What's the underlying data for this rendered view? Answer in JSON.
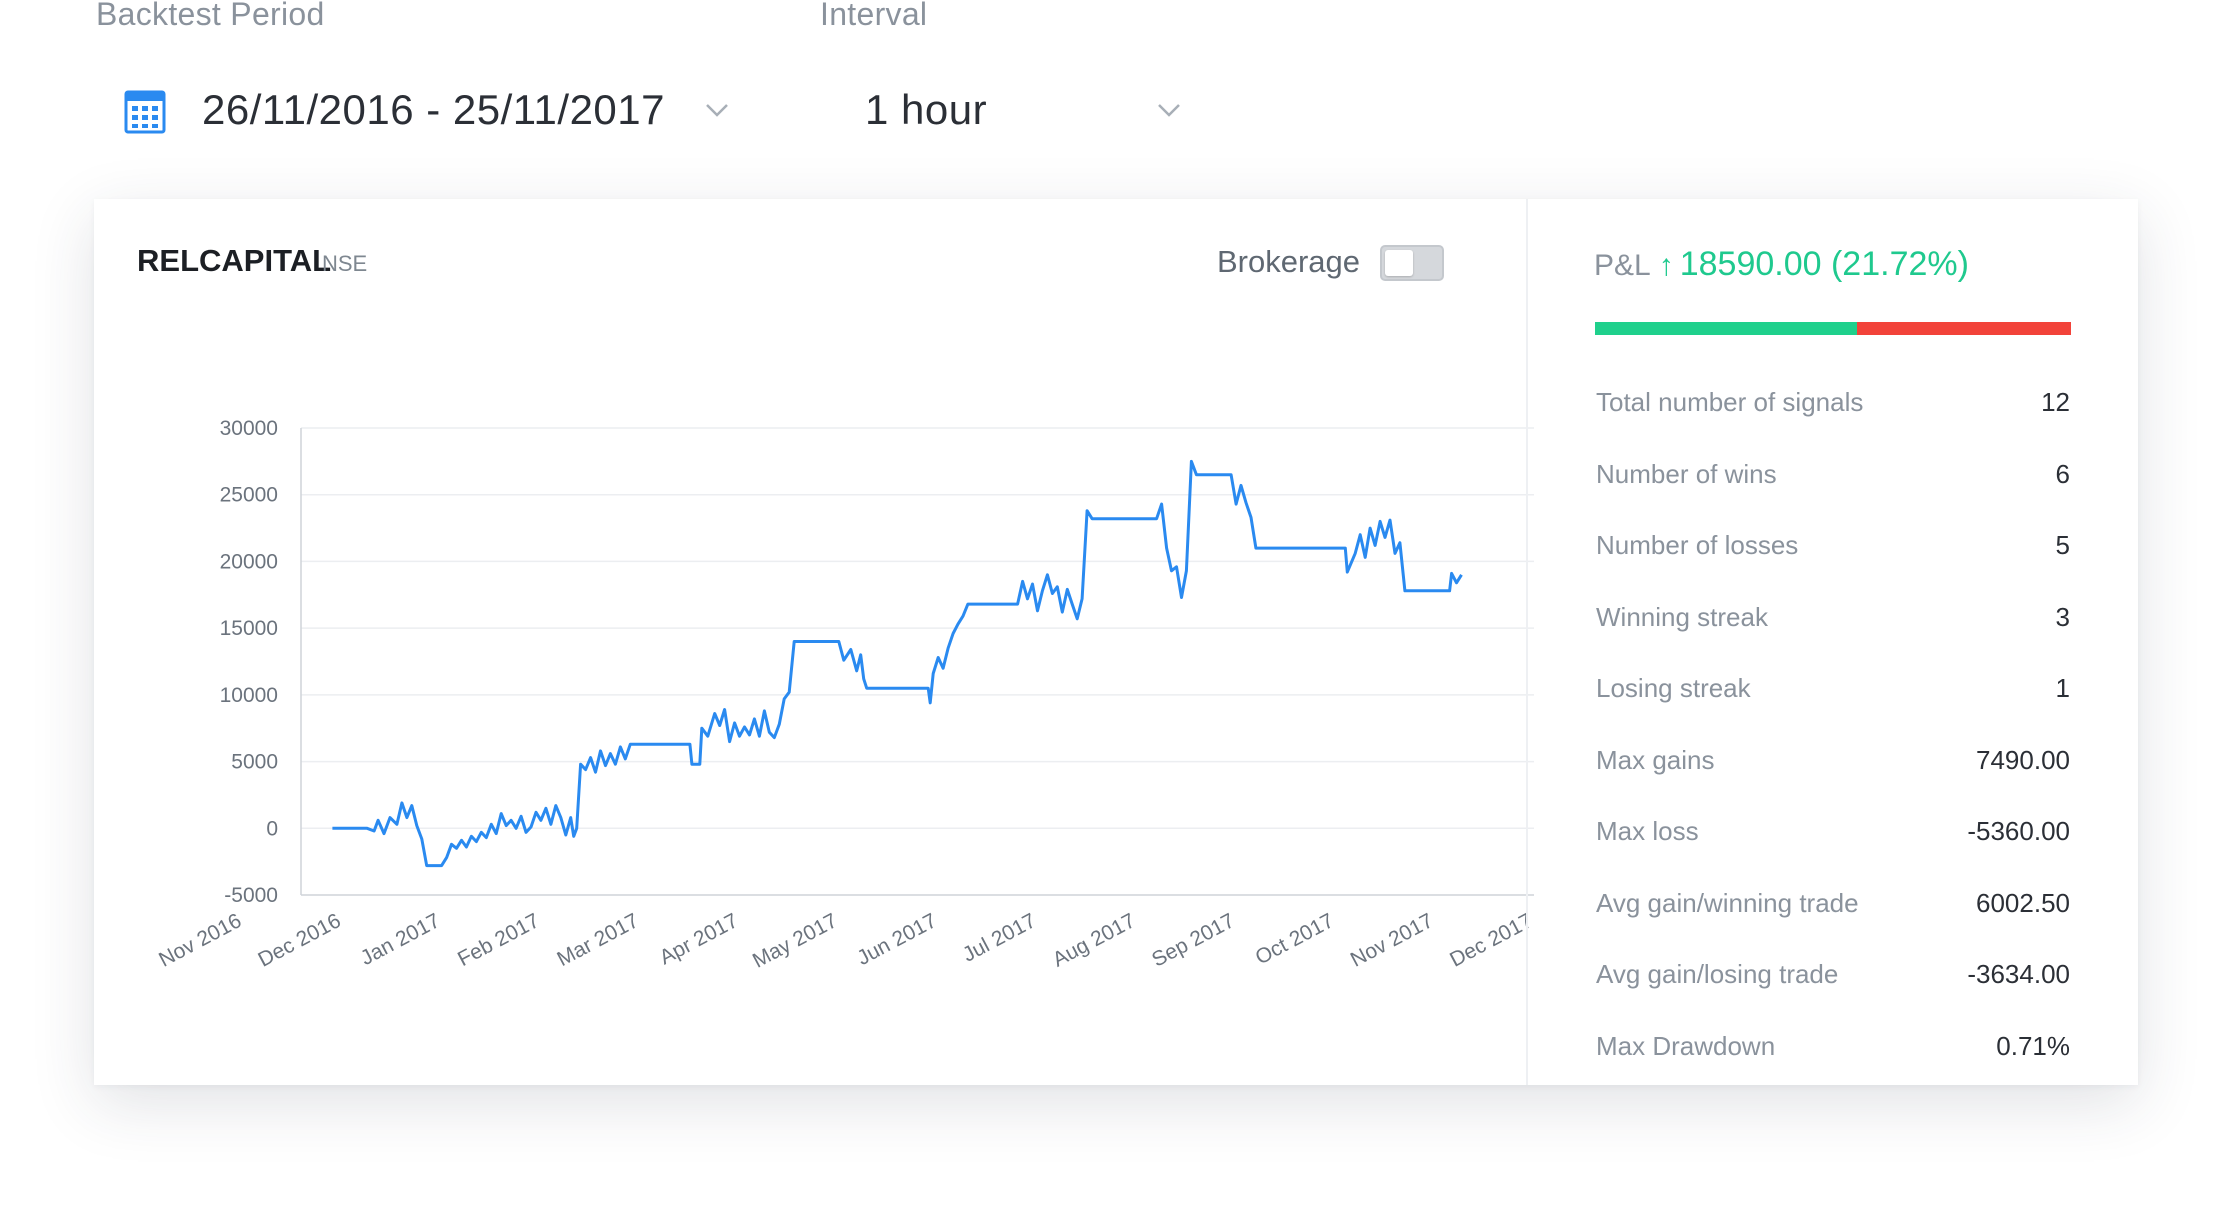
{
  "filters": {
    "period_label": "Backtest Period",
    "period_value": "26/11/2016 - 25/11/2017",
    "interval_label": "Interval",
    "interval_value": "1 hour"
  },
  "icons": {
    "calendar": "calendar-icon",
    "dropdown": "chevron-down-icon",
    "pnl_arrow": "arrow-up-icon"
  },
  "instrument": {
    "symbol": "RELCAPITAL",
    "exchange": "NSE"
  },
  "brokerage": {
    "label": "Brokerage",
    "enabled": false
  },
  "pnl": {
    "label": "P&L",
    "arrow": "↑",
    "value": "18590.00 (21.72%)",
    "win_share": 0.55,
    "colors": {
      "positive": "#1fd08c",
      "negative": "#f2433a"
    }
  },
  "stats": [
    {
      "label": "Total number of signals",
      "value": "12"
    },
    {
      "label": "Number of wins",
      "value": "6"
    },
    {
      "label": "Number of losses",
      "value": "5"
    },
    {
      "label": "Winning streak",
      "value": "3"
    },
    {
      "label": "Losing streak",
      "value": "1"
    },
    {
      "label": "Max gains",
      "value": "7490.00"
    },
    {
      "label": "Max loss",
      "value": "-5360.00"
    },
    {
      "label": "Avg gain/winning trade",
      "value": "6002.50"
    },
    {
      "label": "Avg gain/losing trade",
      "value": "-3634.00"
    },
    {
      "label": "Max Drawdown",
      "value": "0.71%"
    }
  ],
  "chart_data": {
    "type": "line",
    "title": "",
    "xlabel": "",
    "ylabel": "",
    "ylim": [
      -5000,
      30000
    ],
    "yticks": [
      30000,
      25000,
      20000,
      15000,
      10000,
      5000,
      0,
      -5000
    ],
    "xticks": [
      "Nov 2016",
      "Dec 2016",
      "Jan 2017",
      "Feb 2017",
      "Mar 2017",
      "Apr 2017",
      "May 2017",
      "Jun 2017",
      "Jul 2017",
      "Aug 2017",
      "Sep 2017",
      "Oct 2017",
      "Nov 2017",
      "Dec 2017"
    ],
    "grid": true,
    "line_color": "#2a8af0",
    "series": [
      {
        "values": [
          [
            0.9,
            0
          ],
          [
            1.25,
            0
          ],
          [
            1.32,
            -200
          ],
          [
            1.36,
            600
          ],
          [
            1.42,
            -400
          ],
          [
            1.48,
            800
          ],
          [
            1.55,
            300
          ],
          [
            1.6,
            1900
          ],
          [
            1.65,
            800
          ],
          [
            1.7,
            1700
          ],
          [
            1.75,
            200
          ],
          [
            1.8,
            -800
          ],
          [
            1.85,
            -2800
          ],
          [
            2.0,
            -2800
          ],
          [
            2.05,
            -2200
          ],
          [
            2.1,
            -1200
          ],
          [
            2.15,
            -1500
          ],
          [
            2.2,
            -900
          ],
          [
            2.25,
            -1400
          ],
          [
            2.3,
            -600
          ],
          [
            2.35,
            -1000
          ],
          [
            2.4,
            -300
          ],
          [
            2.45,
            -700
          ],
          [
            2.5,
            300
          ],
          [
            2.55,
            -400
          ],
          [
            2.6,
            1100
          ],
          [
            2.65,
            200
          ],
          [
            2.7,
            600
          ],
          [
            2.75,
            0
          ],
          [
            2.8,
            900
          ],
          [
            2.85,
            -300
          ],
          [
            2.9,
            100
          ],
          [
            2.95,
            1200
          ],
          [
            3.0,
            600
          ],
          [
            3.05,
            1500
          ],
          [
            3.1,
            300
          ],
          [
            3.15,
            1700
          ],
          [
            3.2,
            800
          ],
          [
            3.25,
            -500
          ],
          [
            3.3,
            800
          ],
          [
            3.33,
            -600
          ],
          [
            3.36,
            0
          ],
          [
            3.4,
            4800
          ],
          [
            3.45,
            4400
          ],
          [
            3.5,
            5300
          ],
          [
            3.55,
            4200
          ],
          [
            3.6,
            5800
          ],
          [
            3.65,
            4700
          ],
          [
            3.7,
            5600
          ],
          [
            3.75,
            4800
          ],
          [
            3.8,
            6100
          ],
          [
            3.85,
            5200
          ],
          [
            3.9,
            6300
          ],
          [
            4.5,
            6300
          ],
          [
            4.52,
            4800
          ],
          [
            4.6,
            4800
          ],
          [
            4.62,
            7500
          ],
          [
            4.68,
            6900
          ],
          [
            4.75,
            8600
          ],
          [
            4.8,
            7700
          ],
          [
            4.85,
            8900
          ],
          [
            4.9,
            6500
          ],
          [
            4.95,
            7900
          ],
          [
            5.0,
            6900
          ],
          [
            5.05,
            7600
          ],
          [
            5.1,
            7000
          ],
          [
            5.15,
            8200
          ],
          [
            5.2,
            6900
          ],
          [
            5.25,
            8800
          ],
          [
            5.3,
            7200
          ],
          [
            5.35,
            6800
          ],
          [
            5.4,
            7800
          ],
          [
            5.45,
            9700
          ],
          [
            5.5,
            10200
          ],
          [
            5.55,
            14000
          ],
          [
            6.0,
            14000
          ],
          [
            6.05,
            12600
          ],
          [
            6.12,
            13400
          ],
          [
            6.18,
            11800
          ],
          [
            6.22,
            13000
          ],
          [
            6.25,
            11200
          ],
          [
            6.28,
            10500
          ],
          [
            6.9,
            10500
          ],
          [
            6.92,
            9400
          ],
          [
            6.95,
            11600
          ],
          [
            7.0,
            12800
          ],
          [
            7.05,
            12000
          ],
          [
            7.1,
            13500
          ],
          [
            7.15,
            14600
          ],
          [
            7.2,
            15300
          ],
          [
            7.25,
            15900
          ],
          [
            7.3,
            16800
          ],
          [
            7.8,
            16800
          ],
          [
            7.85,
            18500
          ],
          [
            7.9,
            17200
          ],
          [
            7.95,
            18300
          ],
          [
            8.0,
            16300
          ],
          [
            8.05,
            17800
          ],
          [
            8.1,
            19000
          ],
          [
            8.15,
            17600
          ],
          [
            8.2,
            18100
          ],
          [
            8.25,
            16200
          ],
          [
            8.3,
            17900
          ],
          [
            8.35,
            16800
          ],
          [
            8.4,
            15700
          ],
          [
            8.45,
            17200
          ],
          [
            8.5,
            23800
          ],
          [
            8.55,
            23200
          ],
          [
            9.2,
            23200
          ],
          [
            9.25,
            24300
          ],
          [
            9.3,
            21000
          ],
          [
            9.35,
            19300
          ],
          [
            9.4,
            19600
          ],
          [
            9.45,
            17300
          ],
          [
            9.5,
            19300
          ],
          [
            9.55,
            27500
          ],
          [
            9.6,
            26500
          ],
          [
            9.95,
            26500
          ],
          [
            10.0,
            24300
          ],
          [
            10.05,
            25700
          ],
          [
            10.1,
            24400
          ],
          [
            10.15,
            23300
          ],
          [
            10.2,
            21000
          ],
          [
            11.1,
            21000
          ],
          [
            11.12,
            19200
          ],
          [
            11.2,
            20600
          ],
          [
            11.25,
            22000
          ],
          [
            11.3,
            20300
          ],
          [
            11.35,
            22500
          ],
          [
            11.4,
            21200
          ],
          [
            11.45,
            23000
          ],
          [
            11.5,
            21800
          ],
          [
            11.55,
            23100
          ],
          [
            11.6,
            20600
          ],
          [
            11.65,
            21400
          ],
          [
            11.7,
            17800
          ],
          [
            12.15,
            17800
          ],
          [
            12.17,
            19100
          ],
          [
            12.22,
            18400
          ],
          [
            12.27,
            19000
          ]
        ]
      }
    ]
  }
}
